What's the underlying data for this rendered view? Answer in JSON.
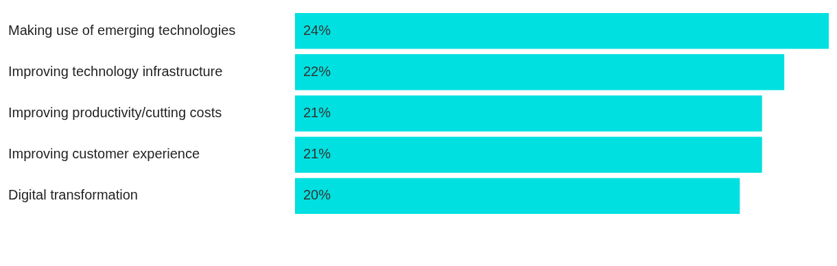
{
  "chart_data": {
    "type": "bar",
    "orientation": "horizontal",
    "categories": [
      "Making use of emerging technologies",
      "Improving technology infrastructure",
      "Improving productivity/cutting costs",
      "Improving customer experience",
      "Digital transformation"
    ],
    "values": [
      24,
      22,
      21,
      21,
      20
    ],
    "value_labels": [
      "24%",
      "22%",
      "21%",
      "21%",
      "20%"
    ],
    "color": "#00e0e0"
  }
}
